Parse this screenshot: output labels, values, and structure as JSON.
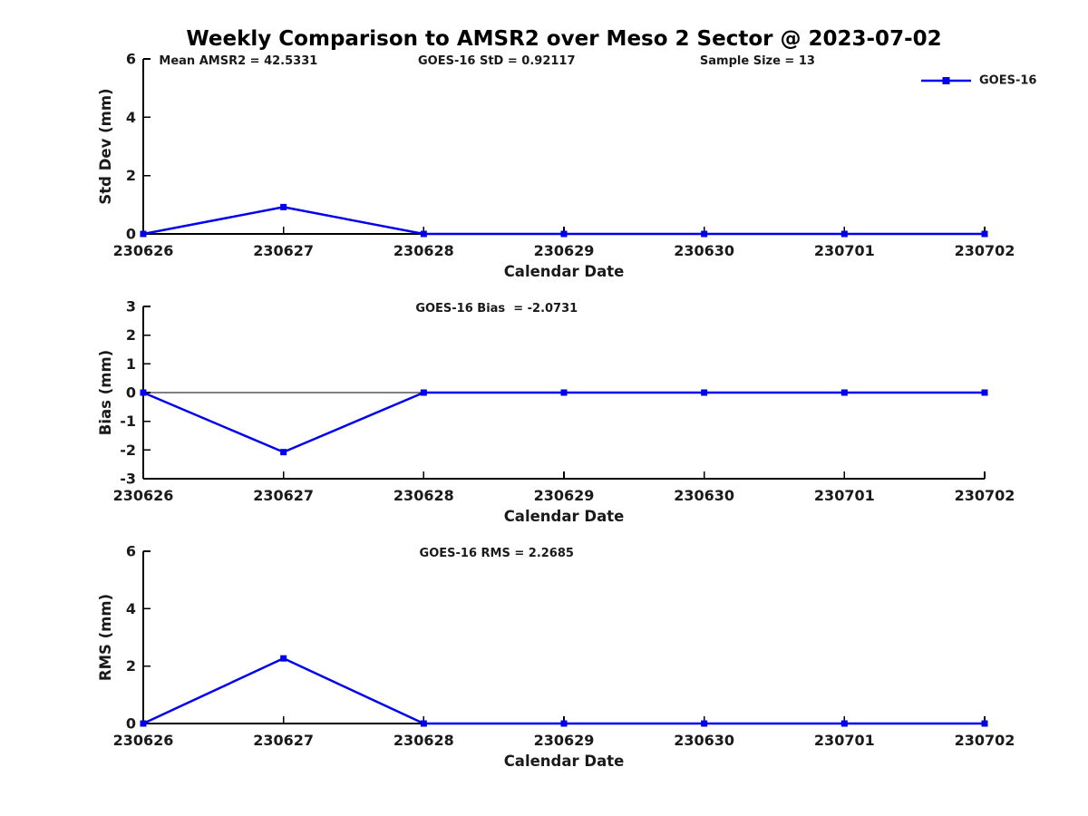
{
  "title": "Weekly Comparison to AMSR2 over Meso 2 Sector @ 2023-07-02",
  "colors": {
    "series": "#0000EE",
    "axis": "#000000",
    "text": "#1a1a1a"
  },
  "legend": {
    "label": "GOES-16",
    "position": "top-right"
  },
  "chart_data": [
    {
      "type": "line",
      "name": "std-dev",
      "annotations": [
        "Mean AMSR2 = 42.5331",
        "GOES-16 StD = 0.92117",
        "Sample Size = 13"
      ],
      "categories": [
        "230626",
        "230627",
        "230628",
        "230629",
        "230630",
        "230701",
        "230702"
      ],
      "series": [
        {
          "name": "GOES-16",
          "values": [
            0,
            0.92117,
            0,
            0,
            0,
            0,
            0
          ]
        }
      ],
      "xlabel": "Calendar Date",
      "ylabel": "Std Dev (mm)",
      "ylim": [
        0,
        6
      ],
      "yticks": [
        0,
        2,
        4,
        6
      ],
      "zero_line": false,
      "legend": true
    },
    {
      "type": "line",
      "name": "bias",
      "title": "GOES-16 Bias  = -2.0731",
      "categories": [
        "230626",
        "230627",
        "230628",
        "230629",
        "230630",
        "230701",
        "230702"
      ],
      "series": [
        {
          "name": "GOES-16",
          "values": [
            0,
            -2.0731,
            0,
            0,
            0,
            0,
            0
          ]
        }
      ],
      "xlabel": "Calendar Date",
      "ylabel": "Bias (mm)",
      "ylim": [
        -3,
        3
      ],
      "yticks": [
        -3,
        -2,
        -1,
        0,
        1,
        2,
        3
      ],
      "zero_line": true,
      "legend": false
    },
    {
      "type": "line",
      "name": "rms",
      "title": "GOES-16 RMS = 2.2685",
      "categories": [
        "230626",
        "230627",
        "230628",
        "230629",
        "230630",
        "230701",
        "230702"
      ],
      "series": [
        {
          "name": "GOES-16",
          "values": [
            0,
            2.2685,
            0,
            0,
            0,
            0,
            0
          ]
        }
      ],
      "xlabel": "Calendar Date",
      "ylabel": "RMS (mm)",
      "ylim": [
        0,
        6
      ],
      "yticks": [
        0,
        2,
        4,
        6
      ],
      "zero_line": false,
      "legend": false
    }
  ]
}
